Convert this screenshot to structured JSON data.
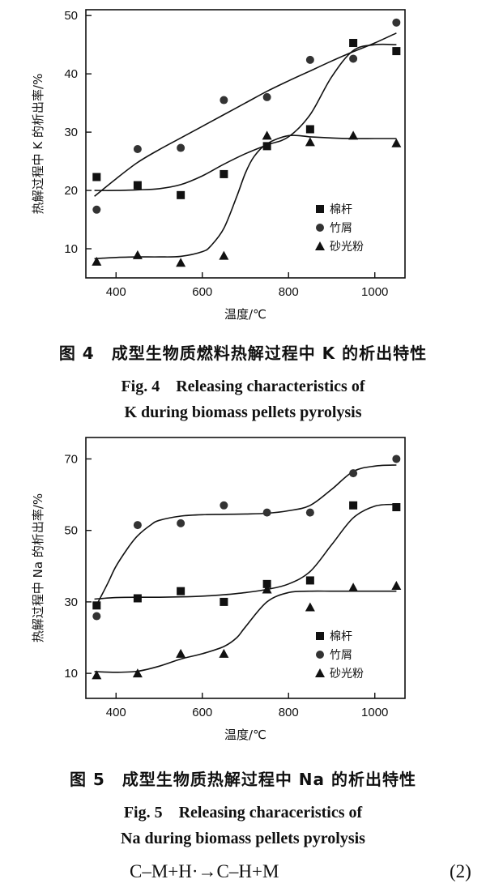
{
  "charts": [
    {
      "id": "chart1",
      "caption_cn": "图 4　成型生物质燃料热解过程中 K 的析出特性",
      "caption_en_1": "Fig. 4　Releasing characteristics of",
      "caption_en_2": "K during biomass pellets pyrolysis",
      "chart_data": {
        "type": "scatter",
        "xlabel": "温度/℃",
        "ylabel": "热解过程中 K 的析出率/%",
        "xlim": [
          330,
          1070
        ],
        "ylim": [
          5,
          51
        ],
        "xticks": [
          400,
          600,
          800,
          1000
        ],
        "yticks": [
          10,
          20,
          30,
          40,
          50
        ],
        "legend_position": "center-right",
        "series": [
          {
            "name": "棉杆",
            "marker": "square",
            "x": [
              355,
              450,
              550,
              650,
              750,
              850,
              950,
              1050
            ],
            "y": [
              22.3,
              20.9,
              19.2,
              22.8,
              27.6,
              30.5,
              45.3,
              43.9
            ],
            "fit_x": [
              350,
              400,
              450,
              500,
              550,
              600,
              650,
              700,
              750,
              800,
              850,
              900,
              950,
              1000,
              1050
            ],
            "fit_y": [
              20,
              20,
              20.1,
              20.3,
              21,
              22.5,
              24.5,
              26.3,
              27.8,
              29.2,
              33,
              39.5,
              44,
              45,
              45
            ]
          },
          {
            "name": "竹屑",
            "marker": "circle",
            "x": [
              355,
              450,
              550,
              650,
              750,
              850,
              950,
              1050
            ],
            "y": [
              16.7,
              27.1,
              27.3,
              35.5,
              36.0,
              42.4,
              42.6,
              48.8
            ],
            "fit_x": [
              350,
              400,
              450,
              500,
              550,
              600,
              650,
              700,
              750,
              800,
              850,
              900,
              950,
              1000,
              1050
            ],
            "fit_y": [
              19,
              22,
              24.8,
              27,
              29,
              31,
              33,
              35,
              37,
              38.8,
              40.5,
              42.2,
              43.8,
              45.3,
              47
            ]
          },
          {
            "name": "砂光粉",
            "marker": "triangle",
            "x": [
              355,
              450,
              550,
              650,
              750,
              850,
              950,
              1050
            ],
            "y": [
              7.8,
              8.9,
              7.6,
              8.8,
              29.4,
              28.3,
              29.4,
              28.1
            ],
            "fit_x": [
              350,
              400,
              450,
              500,
              550,
              600,
              620,
              650,
              680,
              700,
              720,
              750,
              800,
              850,
              900,
              950,
              1000,
              1050
            ],
            "fit_y": [
              8.3,
              8.5,
              8.6,
              8.6,
              8.7,
              9.5,
              10.5,
              13.5,
              19,
              23,
              25.8,
              28,
              29.4,
              29.2,
              29,
              28.9,
              28.9,
              28.9
            ]
          }
        ]
      }
    },
    {
      "id": "chart2",
      "caption_cn": "图 5　成型生物质热解过程中 Na 的析出特性",
      "caption_en_1": "Fig. 5　Releasing characeristics of",
      "caption_en_2": "Na during biomass pellets pyrolysis",
      "chart_data": {
        "type": "scatter",
        "xlabel": "温度/℃",
        "ylabel": "热解过程中 Na 的析出率/%",
        "xlim": [
          330,
          1070
        ],
        "ylim": [
          3,
          76
        ],
        "xticks": [
          400,
          600,
          800,
          1000
        ],
        "yticks": [
          10,
          30,
          50,
          70
        ],
        "legend_position": "bottom-right",
        "series": [
          {
            "name": "棉杆",
            "marker": "square",
            "x": [
              355,
              450,
              550,
              650,
              750,
              850,
              950,
              1050
            ],
            "y": [
              29,
              31,
              33,
              30,
              35,
              36,
              57,
              56.5
            ],
            "fit_x": [
              350,
              400,
              450,
              500,
              550,
              600,
              650,
              700,
              750,
              800,
              850,
              900,
              950,
              1000,
              1050
            ],
            "fit_y": [
              30.8,
              31.2,
              31.3,
              31.3,
              31.4,
              31.6,
              32,
              32.6,
              33.5,
              35,
              38.5,
              46,
              53.5,
              56.8,
              57.3
            ]
          },
          {
            "name": "竹屑",
            "marker": "circle",
            "x": [
              355,
              450,
              550,
              650,
              750,
              850,
              950,
              1050
            ],
            "y": [
              26,
              51.5,
              52,
              57,
              55,
              55,
              66,
              70
            ],
            "fit_x": [
              350,
              380,
              400,
              430,
              450,
              480,
              500,
              550,
              600,
              650,
              700,
              750,
              800,
              850,
              900,
              950,
              1000,
              1050
            ],
            "fit_y": [
              28,
              35,
              40,
              45.5,
              48.5,
              51.5,
              52.8,
              54,
              54.4,
              54.5,
              54.6,
              54.8,
              55.5,
              57,
              61.5,
              66.5,
              68,
              68.3
            ]
          },
          {
            "name": "砂光粉",
            "marker": "triangle",
            "x": [
              355,
              450,
              550,
              650,
              750,
              850,
              950,
              1050
            ],
            "y": [
              9.5,
              10,
              15.5,
              15.5,
              33.5,
              28.5,
              34,
              34.5
            ],
            "fit_x": [
              350,
              400,
              450,
              500,
              550,
              600,
              650,
              680,
              700,
              750,
              800,
              850,
              900,
              950,
              1000,
              1050
            ],
            "fit_y": [
              10.5,
              10.3,
              10.6,
              12,
              14,
              15.5,
              17.5,
              20,
              23,
              30,
              32.6,
              33,
              33,
              33,
              33,
              33
            ]
          }
        ]
      }
    }
  ],
  "equation": "C–M+H·→C–H+M",
  "equation_number": "(2)"
}
